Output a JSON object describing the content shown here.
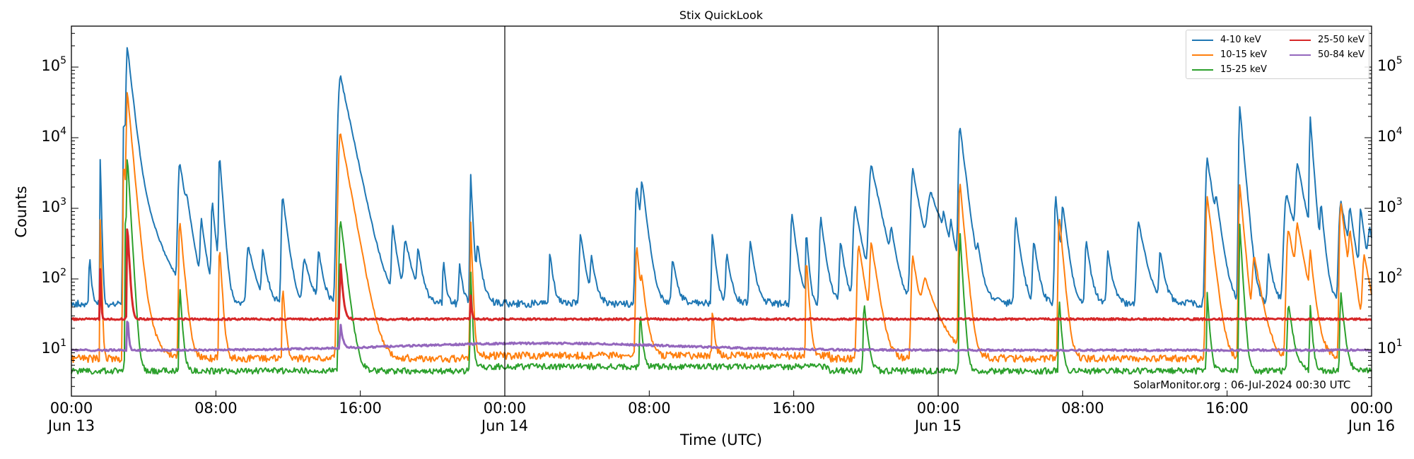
{
  "chart_data": {
    "type": "line",
    "title": "Stix QuickLook",
    "xlabel": "Time (UTC)",
    "ylabel": "Counts",
    "yscale": "log",
    "ylim": [
      2.5,
      400000
    ],
    "xlim": [
      "2024-06-13T00:00",
      "2024-06-16T00:00"
    ],
    "grid": false,
    "legend_position": "upper right",
    "x_ticks": [
      {
        "hour": 0,
        "label": "00:00",
        "sublabel": "Jun 13"
      },
      {
        "hour": 8,
        "label": "08:00",
        "sublabel": ""
      },
      {
        "hour": 16,
        "label": "16:00",
        "sublabel": ""
      },
      {
        "hour": 24,
        "label": "00:00",
        "sublabel": "Jun 14"
      },
      {
        "hour": 32,
        "label": "08:00",
        "sublabel": ""
      },
      {
        "hour": 40,
        "label": "16:00",
        "sublabel": ""
      },
      {
        "hour": 48,
        "label": "00:00",
        "sublabel": "Jun 15"
      },
      {
        "hour": 56,
        "label": "08:00",
        "sublabel": ""
      },
      {
        "hour": 64,
        "label": "16:00",
        "sublabel": ""
      },
      {
        "hour": 72,
        "label": "00:00",
        "sublabel": "Jun 16"
      }
    ],
    "y_ticks": [
      {
        "value": 10,
        "base": "10",
        "exp": "1"
      },
      {
        "value": 100,
        "base": "10",
        "exp": "2"
      },
      {
        "value": 1000,
        "base": "10",
        "exp": "3"
      },
      {
        "value": 10000,
        "base": "10",
        "exp": "4"
      },
      {
        "value": 100000,
        "base": "10",
        "exp": "5"
      }
    ],
    "day_separators_hours": [
      24,
      48
    ],
    "series": [
      {
        "name": "4-10 keV",
        "color": "#1f77b4",
        "baseline": 45,
        "noise": 0.12,
        "peaks": [
          [
            1.0,
            200,
            0.08
          ],
          [
            1.6,
            5500,
            0.04
          ],
          [
            2.9,
            20000,
            0.1
          ],
          [
            3.1,
            200000,
            0.18
          ],
          [
            3.5,
            3000,
            0.6
          ],
          [
            6.0,
            4500,
            0.25
          ],
          [
            6.4,
            600,
            0.2
          ],
          [
            7.2,
            600,
            0.2
          ],
          [
            7.8,
            1200,
            0.15
          ],
          [
            8.2,
            6000,
            0.12
          ],
          [
            9.8,
            250,
            0.3
          ],
          [
            10.6,
            200,
            0.2
          ],
          [
            11.7,
            1500,
            0.2
          ],
          [
            12.9,
            150,
            0.3
          ],
          [
            13.7,
            200,
            0.2
          ],
          [
            14.9,
            75000,
            0.35
          ],
          [
            15.3,
            500,
            0.6
          ],
          [
            17.8,
            500,
            0.2
          ],
          [
            18.5,
            300,
            0.3
          ],
          [
            19.2,
            200,
            0.2
          ],
          [
            20.6,
            150,
            0.1
          ],
          [
            21.5,
            120,
            0.15
          ],
          [
            22.1,
            3500,
            0.08
          ],
          [
            22.5,
            250,
            0.2
          ],
          [
            26.5,
            200,
            0.15
          ],
          [
            28.2,
            400,
            0.2
          ],
          [
            28.8,
            150,
            0.2
          ],
          [
            31.3,
            2000,
            0.2
          ],
          [
            31.6,
            2000,
            0.2
          ],
          [
            33.3,
            150,
            0.2
          ],
          [
            35.5,
            400,
            0.15
          ],
          [
            36.3,
            180,
            0.2
          ],
          [
            37.6,
            300,
            0.2
          ],
          [
            39.9,
            800,
            0.2
          ],
          [
            40.7,
            450,
            0.1
          ],
          [
            41.5,
            700,
            0.2
          ],
          [
            42.6,
            300,
            0.2
          ],
          [
            43.4,
            1000,
            0.3
          ],
          [
            44.3,
            4000,
            0.35
          ],
          [
            45.4,
            350,
            0.2
          ],
          [
            46.6,
            3500,
            0.3
          ],
          [
            47.6,
            1500,
            0.6
          ],
          [
            48.3,
            400,
            0.15
          ],
          [
            48.7,
            400,
            0.15
          ],
          [
            49.2,
            15000,
            0.2
          ],
          [
            50.2,
            150,
            0.2
          ],
          [
            52.3,
            700,
            0.2
          ],
          [
            53.3,
            300,
            0.2
          ],
          [
            54.5,
            1500,
            0.15
          ],
          [
            54.9,
            1000,
            0.2
          ],
          [
            56.2,
            300,
            0.2
          ],
          [
            57.4,
            200,
            0.2
          ],
          [
            59.1,
            600,
            0.3
          ],
          [
            60.3,
            200,
            0.2
          ],
          [
            62.9,
            5000,
            0.25
          ],
          [
            63.4,
            800,
            0.2
          ],
          [
            64.7,
            28000,
            0.15
          ],
          [
            66.3,
            180,
            0.2
          ],
          [
            67.3,
            1500,
            0.4
          ],
          [
            67.9,
            4000,
            0.3
          ],
          [
            68.6,
            20000,
            0.12
          ],
          [
            69.2,
            1000,
            0.15
          ],
          [
            70.3,
            1200,
            0.3
          ],
          [
            70.8,
            800,
            0.2
          ],
          [
            71.4,
            900,
            0.2
          ],
          [
            71.9,
            400,
            0.3
          ]
        ]
      },
      {
        "name": "10-15 keV",
        "color": "#ff7f0e",
        "baseline": 7.5,
        "noise": 0.12,
        "peaks": [
          [
            1.6,
            800,
            0.04
          ],
          [
            2.9,
            5000,
            0.1
          ],
          [
            3.1,
            45000,
            0.15
          ],
          [
            3.5,
            150,
            0.4
          ],
          [
            6.0,
            700,
            0.15
          ],
          [
            8.2,
            300,
            0.1
          ],
          [
            11.7,
            80,
            0.1
          ],
          [
            14.9,
            12000,
            0.3
          ],
          [
            15.3,
            60,
            0.5
          ],
          [
            22.1,
            800,
            0.06
          ],
          [
            31.3,
            300,
            0.15
          ],
          [
            31.6,
            60,
            0.2
          ],
          [
            35.5,
            30,
            0.1
          ],
          [
            40.7,
            200,
            0.1
          ],
          [
            43.6,
            300,
            0.25
          ],
          [
            44.3,
            300,
            0.25
          ],
          [
            46.6,
            200,
            0.25
          ],
          [
            47.3,
            80,
            0.6
          ],
          [
            49.2,
            2500,
            0.15
          ],
          [
            54.7,
            800,
            0.15
          ],
          [
            62.9,
            1500,
            0.2
          ],
          [
            64.7,
            2200,
            0.15
          ],
          [
            65.5,
            200,
            0.3
          ],
          [
            67.4,
            500,
            0.3
          ],
          [
            67.9,
            500,
            0.3
          ],
          [
            68.6,
            200,
            0.15
          ],
          [
            70.3,
            1200,
            0.2
          ],
          [
            70.8,
            400,
            0.2
          ],
          [
            71.6,
            200,
            0.3
          ]
        ]
      },
      {
        "name": "15-25 keV",
        "color": "#2ca02c",
        "baseline": 5,
        "noise": 0.1,
        "peaks": [
          [
            3.0,
            900,
            0.08
          ],
          [
            3.1,
            5500,
            0.1
          ],
          [
            6.0,
            80,
            0.1
          ],
          [
            14.9,
            700,
            0.2
          ],
          [
            22.1,
            150,
            0.06
          ],
          [
            31.5,
            30,
            0.1
          ],
          [
            43.9,
            40,
            0.15
          ],
          [
            49.2,
            500,
            0.1
          ],
          [
            54.7,
            50,
            0.1
          ],
          [
            62.9,
            60,
            0.1
          ],
          [
            64.7,
            600,
            0.1
          ],
          [
            67.4,
            40,
            0.2
          ],
          [
            68.6,
            40,
            0.1
          ],
          [
            70.3,
            60,
            0.15
          ]
        ]
      },
      {
        "name": "25-50 keV",
        "color": "#d62728",
        "baseline": 27,
        "noise": 0.03,
        "peaks": [
          [
            1.6,
            150,
            0.03
          ],
          [
            3.1,
            600,
            0.08
          ],
          [
            14.9,
            150,
            0.1
          ],
          [
            22.1,
            40,
            0.05
          ]
        ]
      },
      {
        "name": "50-84 keV",
        "color": "#9467bd",
        "baseline": 9.8,
        "noise": 0.03,
        "peaks": [
          [
            3.1,
            30,
            0.05
          ],
          [
            14.9,
            14,
            0.1
          ]
        ],
        "bump": {
          "center": 26.0,
          "width": 10.0,
          "amplitude": 2.5
        }
      }
    ]
  },
  "legend": {
    "items": [
      {
        "label": "4-10 keV",
        "color": "#1f77b4"
      },
      {
        "label": "10-15 keV",
        "color": "#ff7f0e"
      },
      {
        "label": "15-25 keV",
        "color": "#2ca02c"
      },
      {
        "label": "25-50 keV",
        "color": "#d62728"
      },
      {
        "label": "50-84 keV",
        "color": "#9467bd"
      }
    ]
  },
  "annotation": "SolarMonitor.org : 06-Jul-2024 00:30 UTC"
}
